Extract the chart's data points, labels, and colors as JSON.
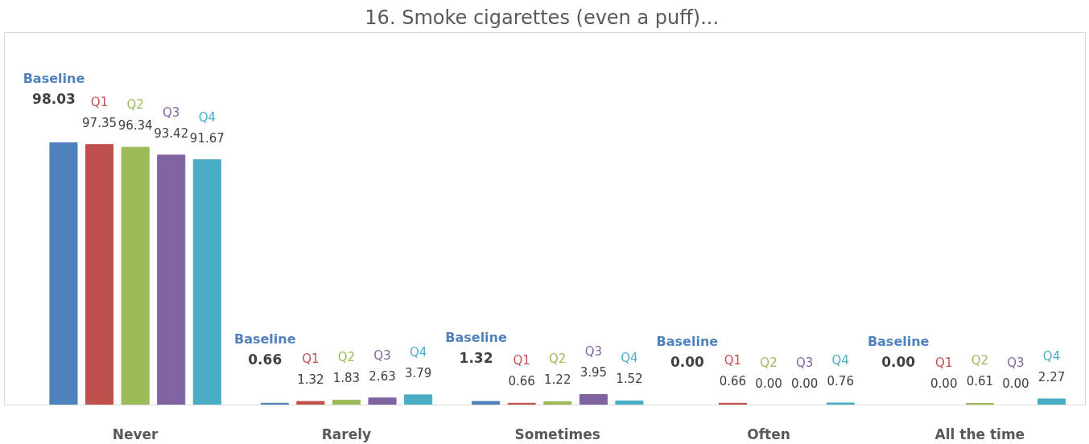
{
  "chart_data": {
    "type": "bar",
    "title": "16.  Smoke cigarettes (even a puff)...",
    "categories": [
      "Never",
      "Rarely",
      "Sometimes",
      "Often",
      "All the time"
    ],
    "data_labels": true,
    "series": [
      {
        "name": "Baseline",
        "color": "#4f81bd",
        "values": [
          98.03,
          0.66,
          1.32,
          0.0,
          0.0
        ],
        "value_labels": [
          "98.03",
          "0.66",
          "1.32",
          "0.00",
          "0.00"
        ]
      },
      {
        "name": "Q1",
        "color": "#c0504d",
        "values": [
          97.35,
          1.32,
          0.66,
          0.66,
          0.0
        ],
        "value_labels": [
          "97.35",
          "1.32",
          "0.66",
          "0.66",
          "0.00"
        ]
      },
      {
        "name": "Q2",
        "color": "#9bbb59",
        "values": [
          96.34,
          1.83,
          1.22,
          0.0,
          0.61
        ],
        "value_labels": [
          "96.34",
          "1.83",
          "1.22",
          "0.00",
          "0.61"
        ]
      },
      {
        "name": "Q3",
        "color": "#8064a2",
        "values": [
          93.42,
          2.63,
          3.95,
          0.0,
          0.0
        ],
        "value_labels": [
          "93.42",
          "2.63",
          "3.95",
          "0.00",
          "0.00"
        ]
      },
      {
        "name": "Q4",
        "color": "#4bacc6",
        "values": [
          91.67,
          3.79,
          1.52,
          0.76,
          2.27
        ],
        "value_labels": [
          "91.67",
          "3.79",
          "1.52",
          "0.76",
          "2.27"
        ]
      }
    ]
  }
}
